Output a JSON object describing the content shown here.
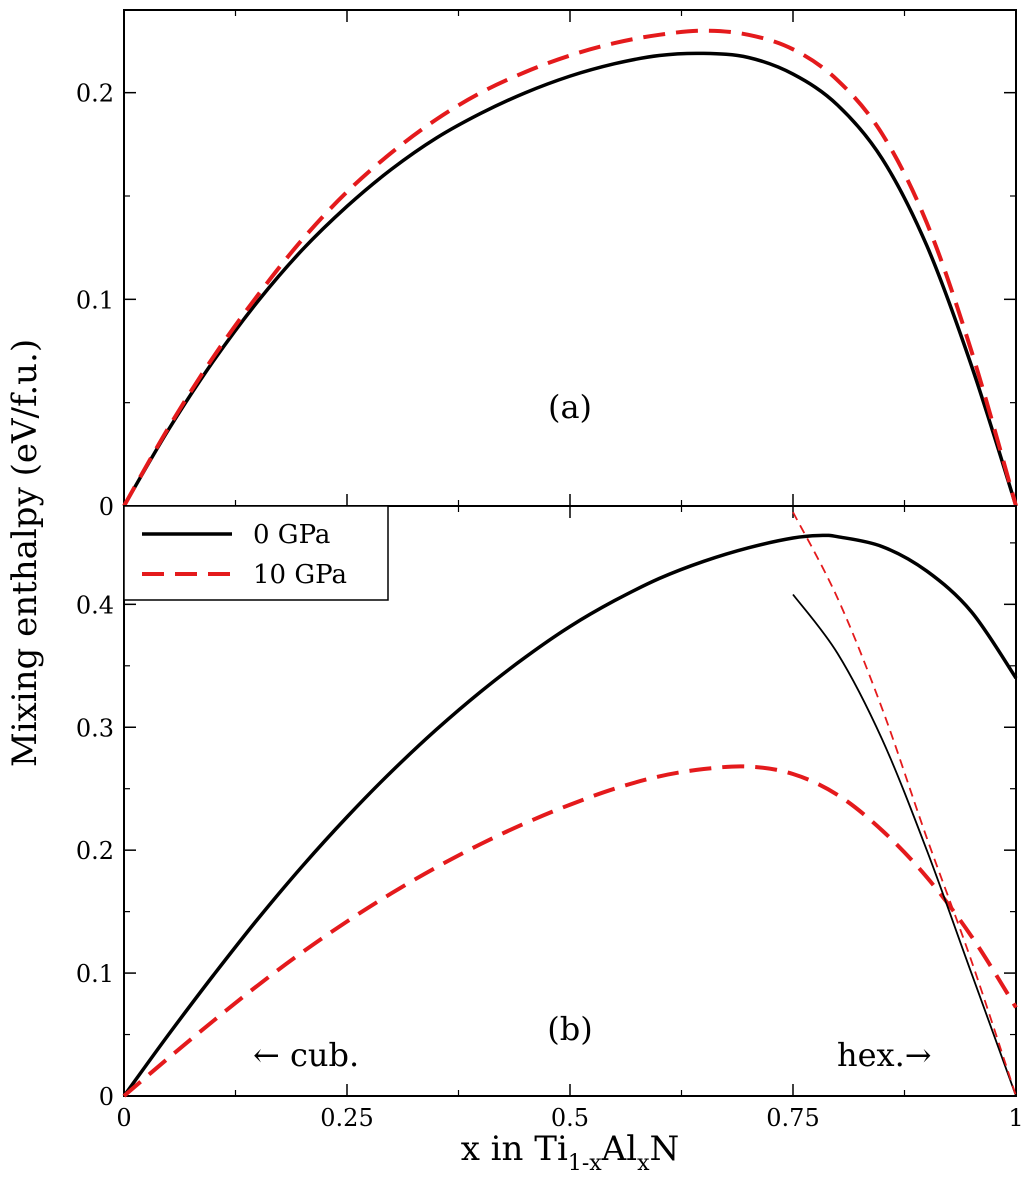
{
  "chart_data": {
    "type": "line",
    "ylabel": "Mixing enthalpy (eV/f.u.)",
    "xlabel": {
      "prefix": "x in Ti",
      "sub1": "1-x",
      "mid": "Al",
      "sub2": "x",
      "suffix": "N"
    },
    "legend": {
      "location": "top-left of panel (b)",
      "entries": [
        {
          "name": "0 GPa",
          "color": "#000000",
          "style": "solid"
        },
        {
          "name": "10 GPa",
          "color": "#e41a1c",
          "style": "dashed"
        }
      ]
    },
    "colors": {
      "black": "#000000",
      "red": "#e41a1c"
    },
    "panels": [
      {
        "id": "a",
        "label": "(a)",
        "xlim": [
          0,
          1
        ],
        "ylim": [
          0,
          0.24
        ],
        "x_major_ticks": [
          0,
          0.25,
          0.5,
          0.75,
          1
        ],
        "x_minor_ticks": [
          0.125,
          0.375,
          0.625,
          0.875
        ],
        "y_ticks": [
          0,
          0.1,
          0.2
        ],
        "y_tick_labels": [
          "0",
          "0.1",
          "0.2"
        ],
        "y_minor_ticks": [
          0.05,
          0.15
        ],
        "series": [
          {
            "name": "0 GPa",
            "color": "#000000",
            "style": "solid",
            "width": 3.5,
            "x": [
              0,
              0.05,
              0.1,
              0.15,
              0.2,
              0.25,
              0.3,
              0.35,
              0.4,
              0.45,
              0.5,
              0.55,
              0.6,
              0.65,
              0.7,
              0.75,
              0.8,
              0.85,
              0.9,
              0.95,
              1.0
            ],
            "y": [
              0,
              0.037,
              0.07,
              0.099,
              0.124,
              0.145,
              0.163,
              0.178,
              0.19,
              0.2,
              0.208,
              0.214,
              0.218,
              0.219,
              0.217,
              0.209,
              0.194,
              0.168,
              0.126,
              0.068,
              0
            ]
          },
          {
            "name": "10 GPa",
            "color": "#e41a1c",
            "style": "dashed",
            "width": 4,
            "x": [
              0,
              0.05,
              0.1,
              0.15,
              0.2,
              0.25,
              0.3,
              0.35,
              0.4,
              0.45,
              0.5,
              0.55,
              0.6,
              0.65,
              0.7,
              0.75,
              0.8,
              0.85,
              0.9,
              0.95,
              1.0
            ],
            "y": [
              0,
              0.038,
              0.072,
              0.102,
              0.129,
              0.152,
              0.171,
              0.187,
              0.2,
              0.21,
              0.218,
              0.224,
              0.228,
              0.23,
              0.228,
              0.221,
              0.206,
              0.18,
              0.137,
              0.075,
              0
            ]
          }
        ]
      },
      {
        "id": "b",
        "label": "(b)",
        "xlim": [
          0,
          1
        ],
        "ylim": [
          0,
          0.48
        ],
        "x_major_ticks": [
          0,
          0.25,
          0.5,
          0.75,
          1
        ],
        "x_tick_labels": [
          "0",
          "0.25",
          "0.5",
          "0.75",
          "1"
        ],
        "x_minor_ticks": [
          0.125,
          0.375,
          0.625,
          0.875
        ],
        "y_ticks": [
          0,
          0.1,
          0.2,
          0.3,
          0.4
        ],
        "y_tick_labels": [
          "0",
          "0.1",
          "0.2",
          "0.3",
          "0.4"
        ],
        "y_minor_ticks": [
          0.05,
          0.15,
          0.25,
          0.35,
          0.45
        ],
        "annotations": [
          {
            "text": "← cub.",
            "x": 0.145,
            "y": 0.06
          },
          {
            "text": "hex.→",
            "x": 0.8,
            "y": 0.06
          }
        ],
        "series": [
          {
            "name": "0 GPa cubic",
            "color": "#000000",
            "style": "solid",
            "width": 3.5,
            "x": [
              0,
              0.05,
              0.1,
              0.15,
              0.2,
              0.25,
              0.3,
              0.35,
              0.4,
              0.45,
              0.5,
              0.55,
              0.6,
              0.65,
              0.7,
              0.75,
              0.78,
              0.8,
              0.85,
              0.9,
              0.95,
              1.0
            ],
            "y": [
              0,
              0.05,
              0.098,
              0.144,
              0.187,
              0.227,
              0.264,
              0.298,
              0.329,
              0.357,
              0.382,
              0.403,
              0.421,
              0.435,
              0.446,
              0.454,
              0.456,
              0.455,
              0.447,
              0.427,
              0.394,
              0.34
            ]
          },
          {
            "name": "10 GPa cubic",
            "color": "#e41a1c",
            "style": "dashed",
            "width": 4,
            "x": [
              0,
              0.05,
              0.1,
              0.15,
              0.2,
              0.25,
              0.3,
              0.35,
              0.4,
              0.45,
              0.5,
              0.55,
              0.6,
              0.65,
              0.7,
              0.75,
              0.8,
              0.85,
              0.9,
              0.95,
              1.0
            ],
            "y": [
              0,
              0.031,
              0.061,
              0.09,
              0.117,
              0.142,
              0.165,
              0.186,
              0.205,
              0.222,
              0.237,
              0.25,
              0.26,
              0.266,
              0.268,
              0.262,
              0.245,
              0.216,
              0.178,
              0.13,
              0.072
            ]
          },
          {
            "name": "0 GPa hexagonal",
            "color": "#000000",
            "style": "solid",
            "width": 1.8,
            "x": [
              0.75,
              0.8,
              0.85,
              0.9,
              0.95,
              1.0
            ],
            "y": [
              0.408,
              0.36,
              0.29,
              0.2,
              0.1,
              0
            ]
          },
          {
            "name": "10 GPa hexagonal",
            "color": "#e41a1c",
            "style": "dashed",
            "width": 1.8,
            "x": [
              0.75,
              0.8,
              0.85,
              0.9,
              0.95,
              1.0
            ],
            "y": [
              0.475,
              0.405,
              0.315,
              0.21,
              0.11,
              0
            ]
          }
        ]
      }
    ]
  }
}
